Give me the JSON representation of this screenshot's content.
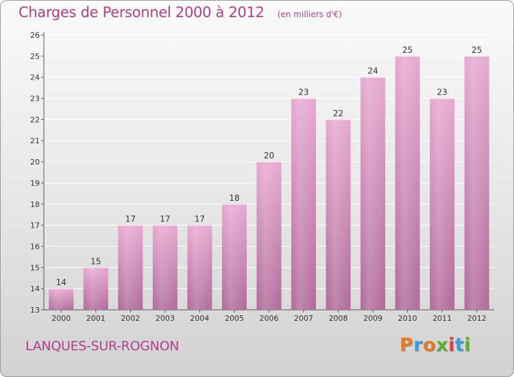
{
  "header": {
    "title": "Charges de Personnel 2000 à 2012",
    "unit": "(en milliers d'€)"
  },
  "footer": {
    "commune": "LANQUES-SUR-ROGNON",
    "logo_text": "Proxiti"
  },
  "colors": {
    "accent": "#b03f86",
    "bar_light": "#e6a8d0",
    "bar_dark": "#b06a98",
    "logo_letters": [
      "#e8792a",
      "#3b9ad9",
      "#e8792a",
      "#5bb032",
      "#e23c3c",
      "#3b9ad9",
      "#5bb032"
    ]
  },
  "chart_data": {
    "type": "bar",
    "title": "Charges de Personnel 2000 à 2012",
    "subtitle": "(en milliers d'€)",
    "categories": [
      "2000",
      "2001",
      "2002",
      "2003",
      "2004",
      "2005",
      "2006",
      "2007",
      "2008",
      "2009",
      "2010",
      "2011",
      "2012"
    ],
    "values": [
      14,
      15,
      17,
      17,
      17,
      18,
      20,
      23,
      22,
      24,
      25,
      23,
      25
    ],
    "ylim": [
      13,
      26
    ],
    "yticks": [
      13,
      14,
      15,
      16,
      17,
      18,
      19,
      20,
      21,
      22,
      23,
      24,
      25,
      26
    ],
    "grid": true,
    "data_labels": true
  }
}
